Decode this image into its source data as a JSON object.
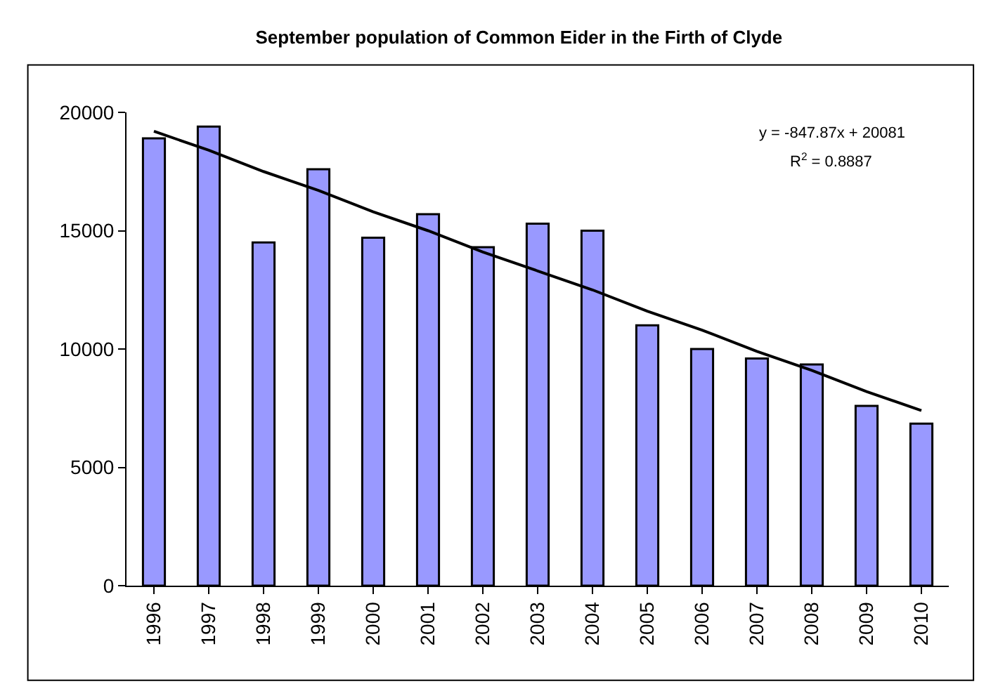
{
  "chart_data": {
    "type": "bar",
    "title": "September population of Common Eider in the Firth of Clyde",
    "categories": [
      "1996",
      "1997",
      "1998",
      "1999",
      "2000",
      "2001",
      "2002",
      "2003",
      "2004",
      "2005",
      "2006",
      "2007",
      "2008",
      "2009",
      "2010"
    ],
    "series": [
      {
        "color": "#9999ff",
        "values": [
          18900,
          19400,
          14500,
          17600,
          14700,
          15700,
          14300,
          15300,
          15000,
          11000,
          10000,
          9600,
          9350,
          7600,
          6850
        ]
      },
      {
        "type": "line",
        "color": "#000000",
        "values": [
          19200,
          18400,
          17500,
          16700,
          15800,
          15000,
          14100,
          13300,
          12500,
          11600,
          10800,
          9900,
          9100,
          8200,
          7400
        ]
      }
    ],
    "ylim": [
      0,
      20000
    ],
    "yticks": [
      0,
      5000,
      10000,
      15000,
      20000
    ],
    "grid": false,
    "legend": false,
    "annotations": [
      "y = -847.87x + 20081",
      "R$^{2}$ = 0.8887"
    ]
  }
}
